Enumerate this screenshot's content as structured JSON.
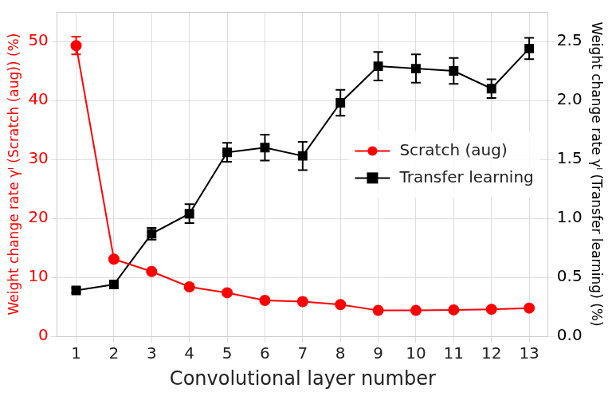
{
  "chart_data": {
    "type": "line",
    "xlabel": "Convolutional layer number",
    "ylabel": "Weight change rate γˡ (Scratch (aug)) (%)",
    "y2label": "Weight change rate γˡ (Transfer learning) (%)",
    "categories": [
      "1",
      "2",
      "3",
      "4",
      "5",
      "6",
      "7",
      "8",
      "9",
      "10",
      "11",
      "12",
      "13"
    ],
    "series": [
      {
        "name": "Scratch (aug)",
        "color": "#ff0000",
        "marker": "circle",
        "line_style": "solid",
        "axis": "y",
        "values": [
          49.3,
          13.1,
          11.0,
          8.4,
          7.4,
          6.1,
          5.9,
          5.4,
          4.4,
          4.4,
          4.5,
          4.6,
          4.8
        ],
        "errors": [
          1.5,
          0.3,
          0.3,
          0.3,
          0.3,
          0.2,
          0.2,
          0.2,
          0.2,
          0.2,
          0.2,
          0.2,
          0.2
        ]
      },
      {
        "name": "Transfer learning",
        "color": "#000000",
        "marker": "square",
        "line_style": "solid",
        "axis": "y2",
        "values": [
          0.39,
          0.44,
          0.87,
          1.04,
          1.56,
          1.6,
          1.53,
          1.98,
          2.29,
          2.27,
          2.25,
          2.1,
          2.44
        ],
        "errors": [
          0.02,
          0.02,
          0.05,
          0.08,
          0.08,
          0.11,
          0.12,
          0.11,
          0.12,
          0.12,
          0.11,
          0.08,
          0.09
        ]
      }
    ],
    "ylim": [
      0,
      55
    ],
    "yticks": [
      0,
      10,
      20,
      30,
      40,
      50
    ],
    "y2lim": [
      0,
      2.75
    ],
    "y2ticks": [
      {
        "value": 0,
        "label": "0.0"
      },
      0.5,
      {
        "value": 1,
        "label": "1.0"
      },
      1.5,
      {
        "value": 2,
        "label": "2.0"
      },
      2.5
    ],
    "grid": true,
    "legend": "center right"
  }
}
